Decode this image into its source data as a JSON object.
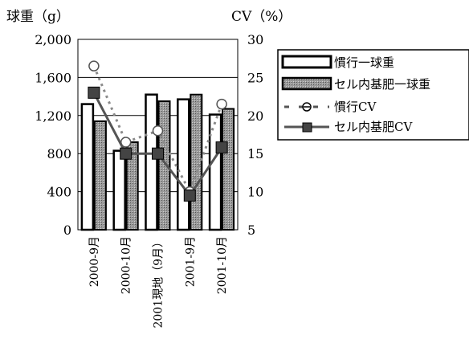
{
  "chart_data": {
    "type": "bar",
    "title": "",
    "y_left_label": "球重（g）",
    "y_right_label": "CV（%）",
    "categories": [
      "2000-9月",
      "2000-10月",
      "2001現地（9月）",
      "2001-9月",
      "2001-10月"
    ],
    "y_left": {
      "lim": [
        0,
        2000
      ],
      "ticks": [
        "0",
        "400",
        "800",
        "1,200",
        "1,600",
        "2,000"
      ],
      "tick_values": [
        0,
        400,
        800,
        1200,
        1600,
        2000
      ]
    },
    "y_right": {
      "lim": [
        5,
        30
      ],
      "ticks": [
        "5",
        "10",
        "15",
        "20",
        "25",
        "30"
      ],
      "tick_values": [
        5,
        10,
        15,
        20,
        25,
        30
      ]
    },
    "grid": "horizontal",
    "legend_position": "right",
    "series": [
      {
        "name": "慣行一球重",
        "kind": "bar",
        "axis": "left",
        "values": [
          1320,
          830,
          1420,
          1370,
          1210
        ]
      },
      {
        "name": "セル内基肥一球重",
        "kind": "bar",
        "axis": "left",
        "values": [
          1140,
          920,
          1350,
          1420,
          1270
        ]
      },
      {
        "name": "慣行CV",
        "kind": "line",
        "axis": "right",
        "values": [
          26.5,
          16.5,
          18,
          10,
          21.5
        ]
      },
      {
        "name": "セル内基肥CV",
        "kind": "line",
        "axis": "right",
        "values": [
          23,
          15,
          15,
          9.5,
          15.8
        ]
      }
    ]
  }
}
